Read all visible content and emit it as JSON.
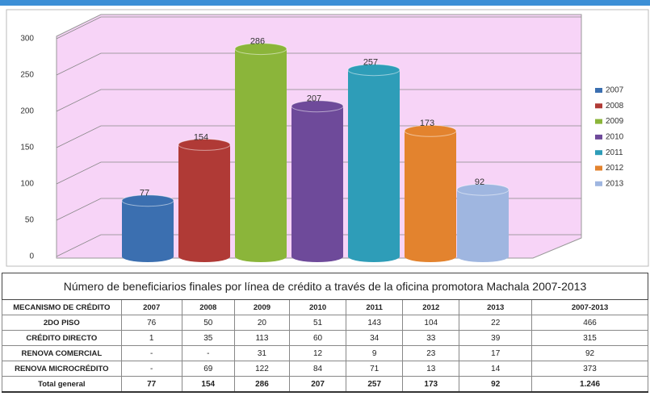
{
  "chart_data": {
    "type": "bar",
    "series": [
      {
        "name": "2007",
        "color": "#3b6fb0",
        "values": [
          77
        ]
      },
      {
        "name": "2008",
        "color": "#b03a36",
        "values": [
          154
        ]
      },
      {
        "name": "2009",
        "color": "#8bb53a",
        "values": [
          286
        ]
      },
      {
        "name": "2010",
        "color": "#6e4a9a",
        "values": [
          207
        ]
      },
      {
        "name": "2011",
        "color": "#2e9db8",
        "values": [
          257
        ]
      },
      {
        "name": "2012",
        "color": "#e3832e",
        "values": [
          173
        ]
      },
      {
        "name": "2013",
        "color": "#9fb6e0",
        "values": [
          92
        ]
      }
    ],
    "ylim": [
      0,
      300
    ],
    "yticks": [
      0,
      50,
      100,
      150,
      200,
      250,
      300
    ],
    "grid": true,
    "legend": "right"
  },
  "table": {
    "title": "Número de beneficiarios finales por línea de crédito a través de la oficina promotora Machala 2007-2013",
    "header": [
      "MECANISMO DE CRÉDITO",
      "2007",
      "2008",
      "2009",
      "2010",
      "2011",
      "2012",
      "2013",
      "2007-2013"
    ],
    "rows": [
      [
        "2DO PISO",
        "76",
        "50",
        "20",
        "51",
        "143",
        "104",
        "22",
        "466"
      ],
      [
        "CRÉDITO DIRECTO",
        "1",
        "35",
        "113",
        "60",
        "34",
        "33",
        "39",
        "315"
      ],
      [
        "RENOVA COMERCIAL",
        "-",
        "-",
        "31",
        "12",
        "9",
        "23",
        "17",
        "92"
      ],
      [
        "RENOVA MICROCRÉDITO",
        "-",
        "69",
        "122",
        "84",
        "71",
        "13",
        "14",
        "373"
      ],
      [
        "Total general",
        "77",
        "154",
        "286",
        "207",
        "257",
        "173",
        "92",
        "1.246"
      ]
    ]
  }
}
